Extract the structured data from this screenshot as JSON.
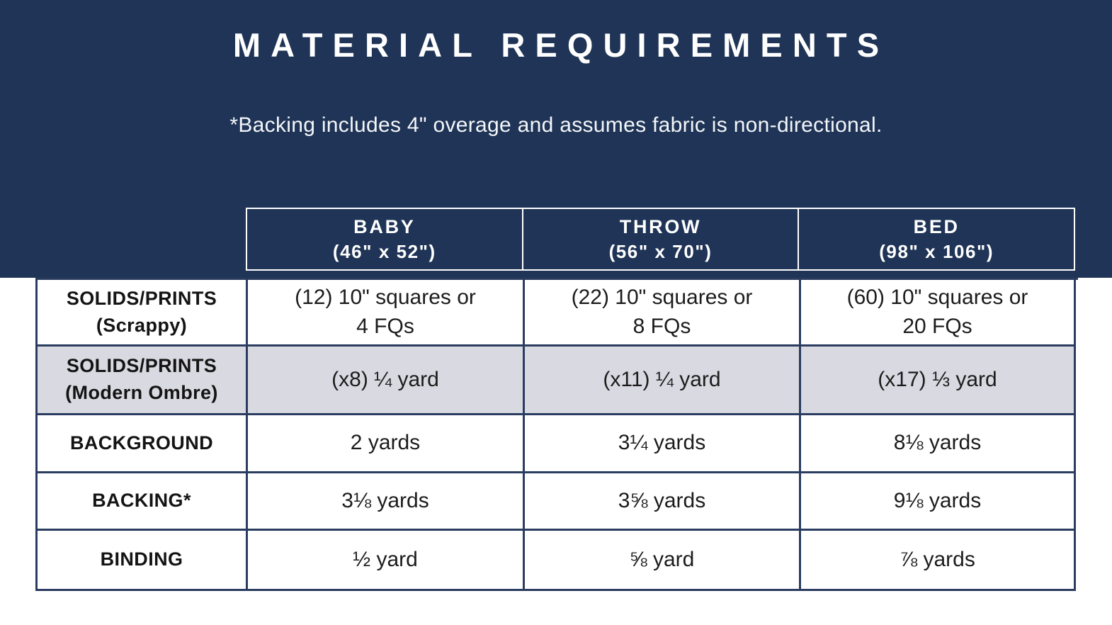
{
  "title": "MATERIAL REQUIREMENTS",
  "subtitle": "*Backing includes 4\" overage and assumes fabric is non-directional.",
  "colors": {
    "navy": "#1f3456",
    "border_navy": "#2a3d60",
    "shaded_row": "#d9d9e1"
  },
  "table": {
    "columns": [
      {
        "label": "BABY",
        "size": "(46\" x 52\")"
      },
      {
        "label": "THROW",
        "size": "(56\" x 70\")"
      },
      {
        "label": "BED",
        "size": "(98\" x 106\")"
      }
    ],
    "rows": [
      {
        "label": "SOLIDS/PRINTS\n(Scrappy)",
        "values": [
          "(12) 10\" squares or\n4 FQs",
          "(22) 10\" squares or\n8 FQs",
          "(60) 10\" squares or\n20 FQs"
        ],
        "shaded": false
      },
      {
        "label": "SOLIDS/PRINTS\n(Modern Ombre)",
        "values": [
          "(x8) ¼ yard",
          "(x11) ¼ yard",
          "(x17) ⅓ yard"
        ],
        "shaded": true
      },
      {
        "label": "BACKGROUND",
        "values": [
          "2 yards",
          "3¼ yards",
          "8⅛ yards"
        ],
        "shaded": false
      },
      {
        "label": "BACKING*",
        "values": [
          "3⅛ yards",
          "3⅝ yards",
          "9⅛ yards"
        ],
        "shaded": false
      },
      {
        "label": "BINDING",
        "values": [
          "½ yard",
          "⅝ yard",
          "⅞ yards"
        ],
        "shaded": false
      }
    ]
  }
}
